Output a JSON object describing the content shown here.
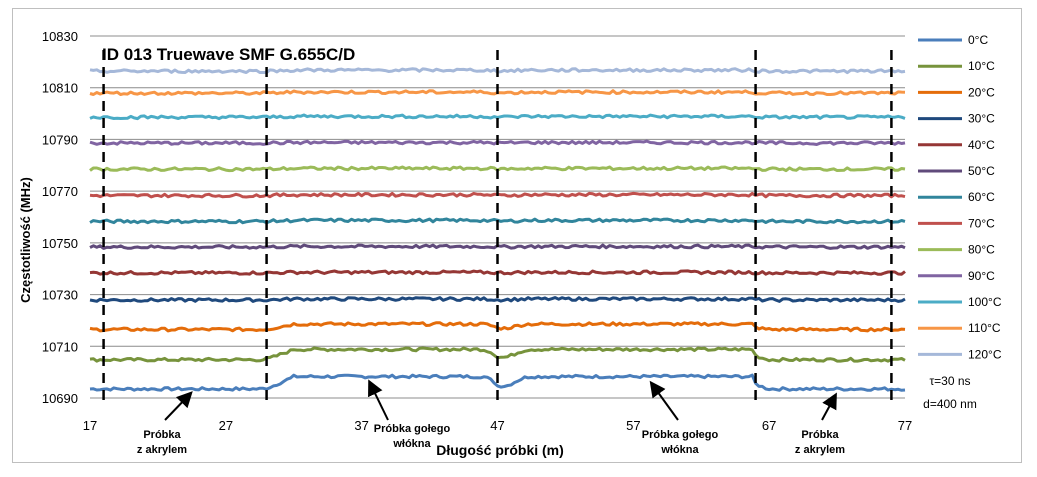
{
  "chart_data": {
    "type": "line",
    "title": "ID 013 Truewave SMF G.655C/D",
    "xlabel": "Długość próbki (m)",
    "ylabel": "Częstotliwość (MHz)",
    "xlim": [
      17,
      77
    ],
    "ylim": [
      10690,
      10830
    ],
    "x_ticks": [
      "17",
      "27",
      "37",
      "47",
      "57",
      "67",
      "77"
    ],
    "y_ticks": [
      "10690",
      "10710",
      "10730",
      "10750",
      "10770",
      "10790",
      "10810",
      "10830"
    ],
    "grid": "horizontal",
    "legend_position": "right",
    "segment_boundaries": [
      18,
      30,
      47,
      66,
      76
    ],
    "series": [
      {
        "name": "0°C",
        "color": "#4a7ebb",
        "inside": 10693.5,
        "outside": 10698.3
      },
      {
        "name": "10°C",
        "color": "#77933c",
        "inside": 10704.8,
        "outside": 10708.8
      },
      {
        "name": "20°C",
        "color": "#e46c0a",
        "inside": 10716.5,
        "outside": 10718.6
      },
      {
        "name": "30°C",
        "color": "#1f497d",
        "inside": 10727.9,
        "outside": 10728.3
      },
      {
        "name": "40°C",
        "color": "#953735",
        "inside": 10738.4,
        "outside": 10738.6
      },
      {
        "name": "50°C",
        "color": "#604a7b",
        "inside": 10748.4,
        "outside": 10748.6
      },
      {
        "name": "60°C",
        "color": "#31859c",
        "inside": 10758.3,
        "outside": 10758.7
      },
      {
        "name": "70°C",
        "color": "#c0504d",
        "inside": 10768.3,
        "outside": 10768.6
      },
      {
        "name": "80°C",
        "color": "#9bbb59",
        "inside": 10778.5,
        "outside": 10778.8
      },
      {
        "name": "90°C",
        "color": "#8064a2",
        "inside": 10788.6,
        "outside": 10788.8
      },
      {
        "name": "100°C",
        "color": "#4bacc6",
        "inside": 10798.6,
        "outside": 10798.9
      },
      {
        "name": "110°C",
        "color": "#f79646",
        "inside": 10807.9,
        "outside": 10808.3
      },
      {
        "name": "120°C",
        "color": "#a5b8d9",
        "inside": 10816.4,
        "outside": 10816.8
      }
    ],
    "annotations": [
      {
        "line1": "Próbka",
        "line2": "z akrylem",
        "at_x": 23
      },
      {
        "line1": "Próbka gołego",
        "line2": "włókna",
        "at_x": 42
      },
      {
        "line1": "Próbka gołego",
        "line2": "włókna",
        "at_x": 59
      },
      {
        "line1": "Próbka",
        "line2": "z akrylem",
        "at_x": 72
      }
    ],
    "notes": [
      "τ=30 ns",
      "d=400 nm"
    ]
  }
}
